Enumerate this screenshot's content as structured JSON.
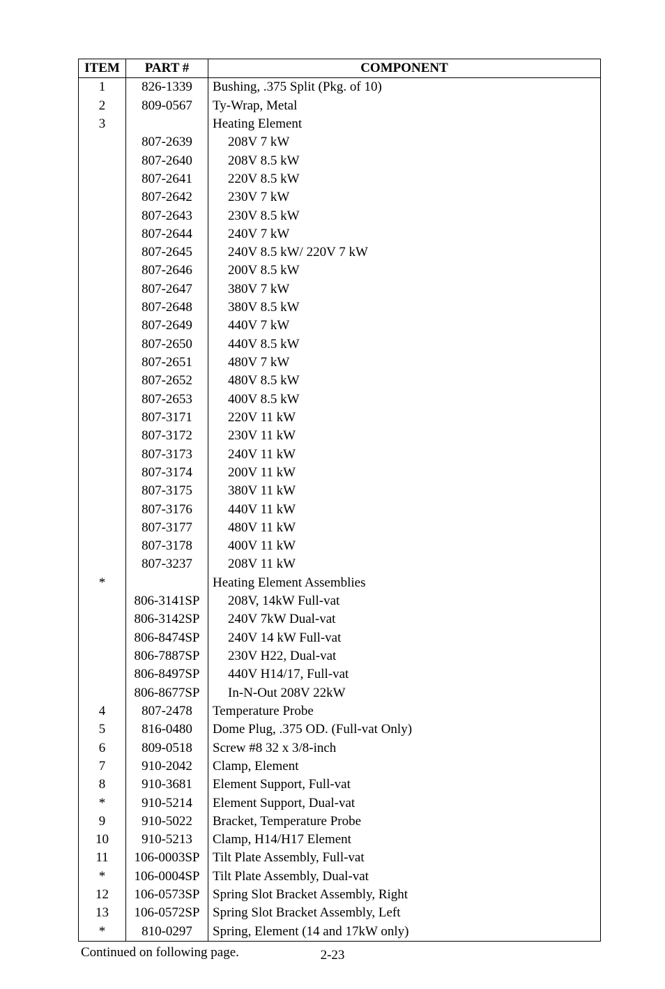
{
  "headers": {
    "item": "ITEM",
    "part": "PART #",
    "comp": "COMPONENT"
  },
  "rows": [
    {
      "item": "1",
      "part": "826-1339",
      "comp": "Bushing, .375 Split (Pkg. of 10)"
    },
    {
      "item": "2",
      "part": "809-0567",
      "comp": "Ty-Wrap, Metal"
    },
    {
      "item": "3",
      "part": "",
      "comp": "Heating Element"
    },
    {
      "item": "",
      "part": "807-2639",
      "comp": "208V 7 kW",
      "indent": true
    },
    {
      "item": "",
      "part": "807-2640",
      "comp": "208V 8.5 kW",
      "indent": true
    },
    {
      "item": "",
      "part": "807-2641",
      "comp": "220V 8.5 kW",
      "indent": true
    },
    {
      "item": "",
      "part": "807-2642",
      "comp": "230V 7 kW",
      "indent": true
    },
    {
      "item": "",
      "part": "807-2643",
      "comp": "230V 8.5 kW",
      "indent": true
    },
    {
      "item": "",
      "part": "807-2644",
      "comp": "240V 7 kW",
      "indent": true
    },
    {
      "item": "",
      "part": "807-2645",
      "comp": "240V 8.5 kW/ 220V 7 kW",
      "indent": true
    },
    {
      "item": "",
      "part": "807-2646",
      "comp": "200V 8.5 kW",
      "indent": true
    },
    {
      "item": "",
      "part": "807-2647",
      "comp": "380V 7 kW",
      "indent": true
    },
    {
      "item": "",
      "part": "807-2648",
      "comp": "380V 8.5 kW",
      "indent": true
    },
    {
      "item": "",
      "part": "807-2649",
      "comp": "440V 7 kW",
      "indent": true
    },
    {
      "item": "",
      "part": "807-2650",
      "comp": "440V 8.5 kW",
      "indent": true
    },
    {
      "item": "",
      "part": "807-2651",
      "comp": "480V 7 kW",
      "indent": true
    },
    {
      "item": "",
      "part": "807-2652",
      "comp": "480V 8.5 kW",
      "indent": true
    },
    {
      "item": "",
      "part": "807-2653",
      "comp": "400V 8.5 kW",
      "indent": true
    },
    {
      "item": "",
      "part": "807-3171",
      "comp": "220V 11 kW",
      "indent": true
    },
    {
      "item": "",
      "part": "807-3172",
      "comp": "230V 11 kW",
      "indent": true
    },
    {
      "item": "",
      "part": "807-3173",
      "comp": "240V 11 kW",
      "indent": true
    },
    {
      "item": "",
      "part": "807-3174",
      "comp": "200V 11 kW",
      "indent": true
    },
    {
      "item": "",
      "part": "807-3175",
      "comp": "380V 11 kW",
      "indent": true
    },
    {
      "item": "",
      "part": "807-3176",
      "comp": "440V 11 kW",
      "indent": true
    },
    {
      "item": "",
      "part": "807-3177",
      "comp": "480V 11 kW",
      "indent": true
    },
    {
      "item": "",
      "part": "807-3178",
      "comp": "400V 11 kW",
      "indent": true
    },
    {
      "item": "",
      "part": "807-3237",
      "comp": "208V 11 kW",
      "indent": true
    },
    {
      "item": "*",
      "part": "",
      "comp": "Heating Element Assemblies"
    },
    {
      "item": "",
      "part": "806-3141SP",
      "comp": "208V, 14kW Full-vat",
      "indent": true
    },
    {
      "item": "",
      "part": "806-3142SP",
      "comp": "240V 7kW Dual-vat",
      "indent": true
    },
    {
      "item": "",
      "part": "806-8474SP",
      "comp": "240V 14 kW Full-vat",
      "indent": true
    },
    {
      "item": "",
      "part": "806-7887SP",
      "comp": "230V H22, Dual-vat",
      "indent": true
    },
    {
      "item": "",
      "part": "806-8497SP",
      "comp": "440V H14/17, Full-vat",
      "indent": true
    },
    {
      "item": "",
      "part": "806-8677SP",
      "comp": "In-N-Out 208V 22kW",
      "indent": true
    },
    {
      "item": "4",
      "part": "807-2478",
      "comp": "Temperature Probe"
    },
    {
      "item": "5",
      "part": "816-0480",
      "comp": "Dome Plug, .375 OD. (Full-vat Only)"
    },
    {
      "item": "6",
      "part": "809-0518",
      "comp": "Screw #8 32 x 3/8-inch"
    },
    {
      "item": "7",
      "part": "910-2042",
      "comp": "Clamp, Element"
    },
    {
      "item": "8",
      "part": "910-3681",
      "comp": "Element Support, Full-vat"
    },
    {
      "item": "*",
      "part": "910-5214",
      "comp": "Element Support, Dual-vat"
    },
    {
      "item": "9",
      "part": "910-5022",
      "comp": "Bracket, Temperature Probe"
    },
    {
      "item": "10",
      "part": "910-5213",
      "comp": "Clamp, H14/H17 Element"
    },
    {
      "item": "11",
      "part": "106-0003SP",
      "comp": "Tilt Plate Assembly, Full-vat"
    },
    {
      "item": "*",
      "part": "106-0004SP",
      "comp": "Tilt Plate Assembly, Dual-vat"
    },
    {
      "item": "12",
      "part": "106-0573SP",
      "comp": "Spring Slot Bracket Assembly, Right"
    },
    {
      "item": "13",
      "part": "106-0572SP",
      "comp": "Spring Slot Bracket Assembly, Left"
    },
    {
      "item": "*",
      "part": "810-0297",
      "comp": "Spring, Element (14 and 17kW only)"
    }
  ],
  "note": "Continued on following page.",
  "page_number": "2-23"
}
